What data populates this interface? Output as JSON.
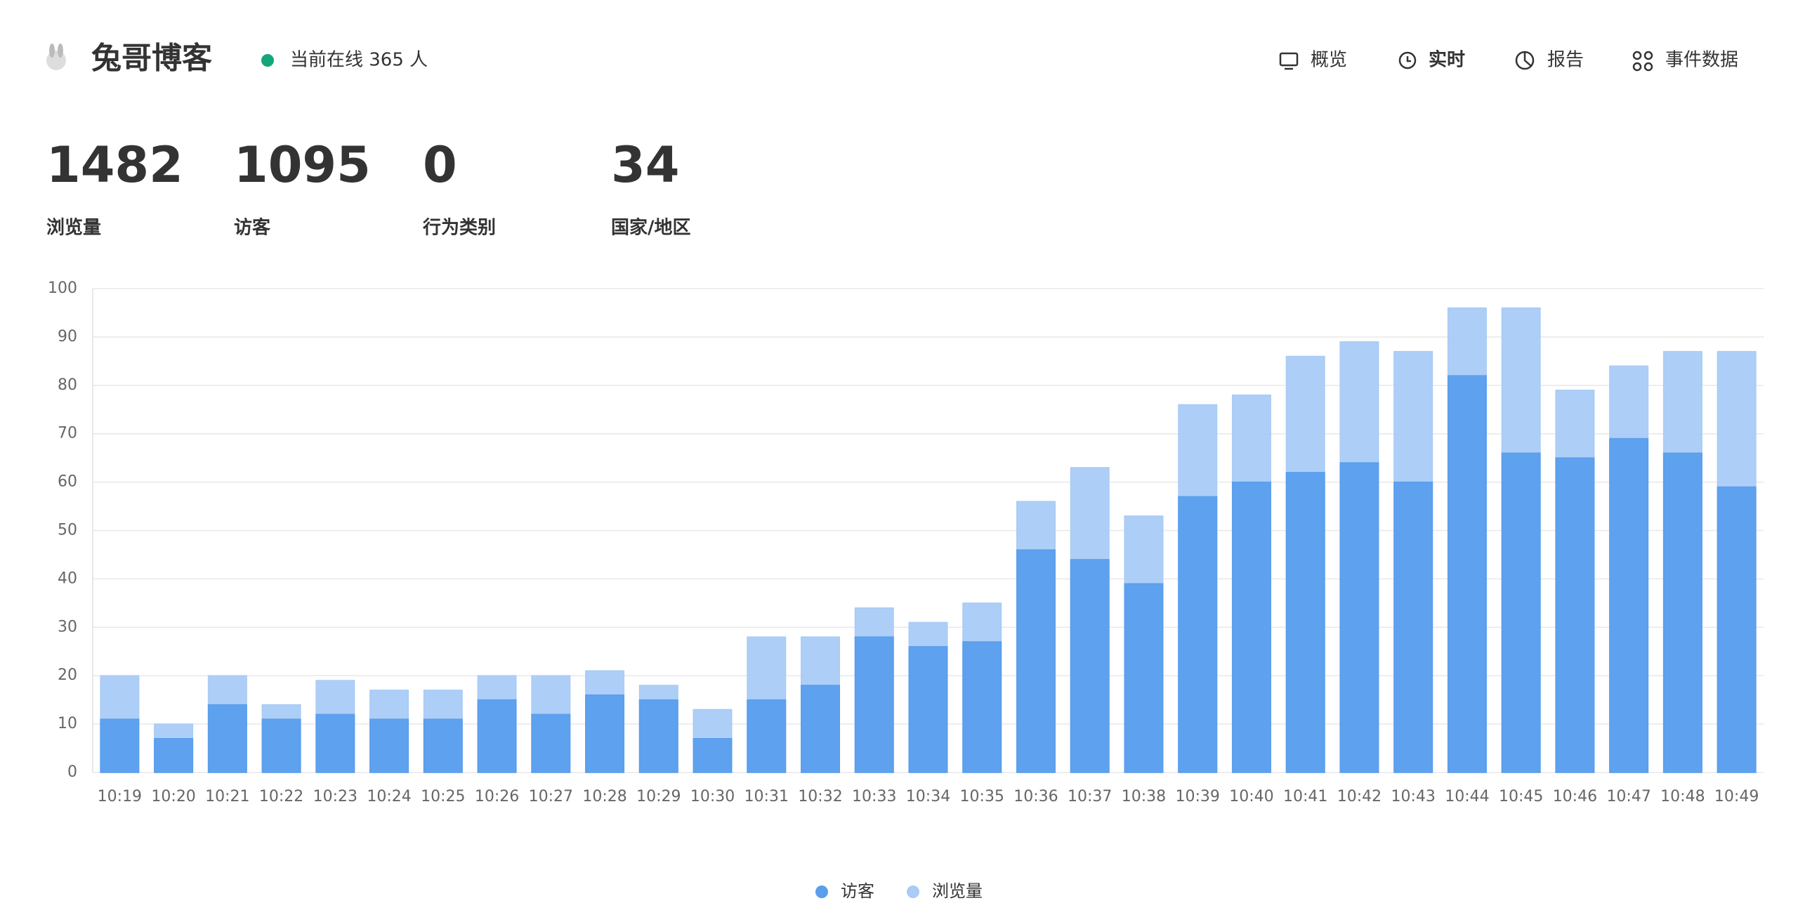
{
  "header": {
    "title": "兔哥博客",
    "online": "当前在线 365 人"
  },
  "nav": [
    "概览",
    "实时",
    "报告",
    "事件数据"
  ],
  "metrics": [
    {
      "value": "1482",
      "label": "浏览量"
    },
    {
      "value": "1095",
      "label": "访客"
    },
    {
      "value": "0",
      "label": "行为类别"
    },
    {
      "value": "34",
      "label": "国家/地区"
    }
  ],
  "chart_data": {
    "type": "bar",
    "overlay": true,
    "categories": [
      "10:19",
      "10:20",
      "10:21",
      "10:22",
      "10:23",
      "10:24",
      "10:25",
      "10:26",
      "10:27",
      "10:28",
      "10:29",
      "10:30",
      "10:31",
      "10:32",
      "10:33",
      "10:34",
      "10:35",
      "10:36",
      "10:37",
      "10:38",
      "10:39",
      "10:40",
      "10:41",
      "10:42",
      "10:43",
      "10:44",
      "10:45",
      "10:46",
      "10:47",
      "10:48",
      "10:49"
    ],
    "series": [
      {
        "name": "访客",
        "color": "#5a9eed",
        "values": [
          11,
          7,
          14,
          11,
          12,
          11,
          11,
          15,
          12,
          16,
          15,
          7,
          15,
          18,
          28,
          26,
          27,
          46,
          44,
          39,
          57,
          60,
          62,
          64,
          60,
          82,
          66,
          65,
          69,
          66,
          59
        ]
      },
      {
        "name": "浏览量",
        "color": "#a9cbf5",
        "values": [
          20,
          10,
          20,
          14,
          19,
          17,
          17,
          20,
          20,
          21,
          18,
          13,
          28,
          28,
          34,
          31,
          35,
          56,
          63,
          53,
          76,
          78,
          86,
          89,
          87,
          96,
          96,
          79,
          84,
          87,
          87
        ]
      }
    ],
    "ylim": [
      0,
      100
    ],
    "yticks": [
      0,
      10,
      20,
      30,
      40,
      50,
      60,
      70,
      80,
      90,
      100
    ],
    "grid": true,
    "legend": "bottom"
  }
}
